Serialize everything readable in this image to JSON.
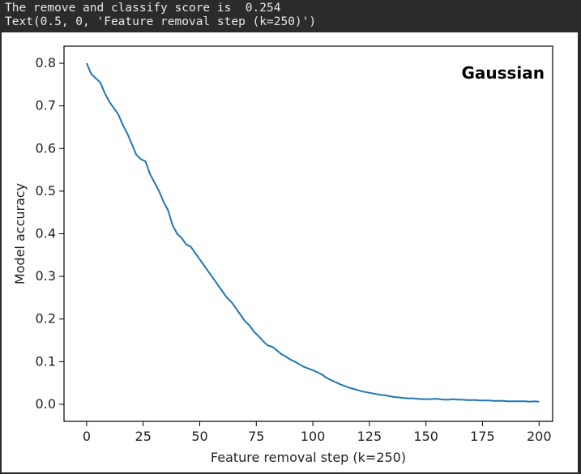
{
  "output": {
    "line1": "The remove and classify score is  0.254",
    "line2": "Text(0.5, 0, 'Feature removal step (k=250)')"
  },
  "chart_data": {
    "type": "line",
    "xlabel": "Feature removal step (k=250)",
    "ylabel": "Model accuracy",
    "annotation": "Gaussian",
    "xlim": [
      -10,
      206
    ],
    "ylim": [
      -0.04,
      0.84
    ],
    "xticks": [
      "0",
      "25",
      "50",
      "75",
      "100",
      "125",
      "150",
      "175",
      "200"
    ],
    "yticks": [
      "0.0",
      "0.1",
      "0.2",
      "0.3",
      "0.4",
      "0.5",
      "0.6",
      "0.7",
      "0.8"
    ],
    "line_color": "#1f77b4",
    "series": [
      {
        "x": [
          0,
          2,
          4,
          6,
          8,
          10,
          12,
          14,
          16,
          18,
          20,
          22,
          24,
          26,
          28,
          30,
          32,
          34,
          36,
          38,
          40,
          42,
          44,
          46,
          48,
          50,
          52,
          54,
          56,
          58,
          60,
          62,
          64,
          66,
          68,
          70,
          72,
          74,
          76,
          78,
          80,
          82,
          84,
          86,
          88,
          90,
          92,
          94,
          96,
          98,
          100,
          102,
          104,
          106,
          108,
          110,
          112,
          114,
          116,
          118,
          120,
          122,
          124,
          126,
          128,
          130,
          132,
          134,
          136,
          138,
          140,
          142,
          144,
          146,
          148,
          150,
          152,
          154,
          156,
          158,
          160,
          162,
          164,
          166,
          168,
          170,
          172,
          174,
          176,
          178,
          180,
          182,
          184,
          186,
          188,
          190,
          192,
          194,
          196,
          198,
          200
        ],
        "values": [
          0.8,
          0.775,
          0.765,
          0.755,
          0.73,
          0.71,
          0.695,
          0.68,
          0.655,
          0.635,
          0.61,
          0.585,
          0.575,
          0.57,
          0.54,
          0.52,
          0.5,
          0.475,
          0.455,
          0.42,
          0.4,
          0.39,
          0.375,
          0.37,
          0.355,
          0.34,
          0.325,
          0.31,
          0.295,
          0.28,
          0.265,
          0.25,
          0.24,
          0.225,
          0.21,
          0.195,
          0.185,
          0.17,
          0.16,
          0.148,
          0.138,
          0.135,
          0.127,
          0.118,
          0.112,
          0.105,
          0.1,
          0.094,
          0.088,
          0.084,
          0.08,
          0.075,
          0.07,
          0.062,
          0.057,
          0.052,
          0.047,
          0.043,
          0.039,
          0.036,
          0.033,
          0.03,
          0.028,
          0.026,
          0.024,
          0.022,
          0.021,
          0.019,
          0.017,
          0.016,
          0.015,
          0.014,
          0.014,
          0.013,
          0.012,
          0.012,
          0.012,
          0.013,
          0.012,
          0.011,
          0.011,
          0.012,
          0.011,
          0.011,
          0.01,
          0.01,
          0.01,
          0.009,
          0.009,
          0.009,
          0.008,
          0.008,
          0.008,
          0.007,
          0.007,
          0.007,
          0.007,
          0.007,
          0.006,
          0.007,
          0.006
        ]
      }
    ]
  }
}
